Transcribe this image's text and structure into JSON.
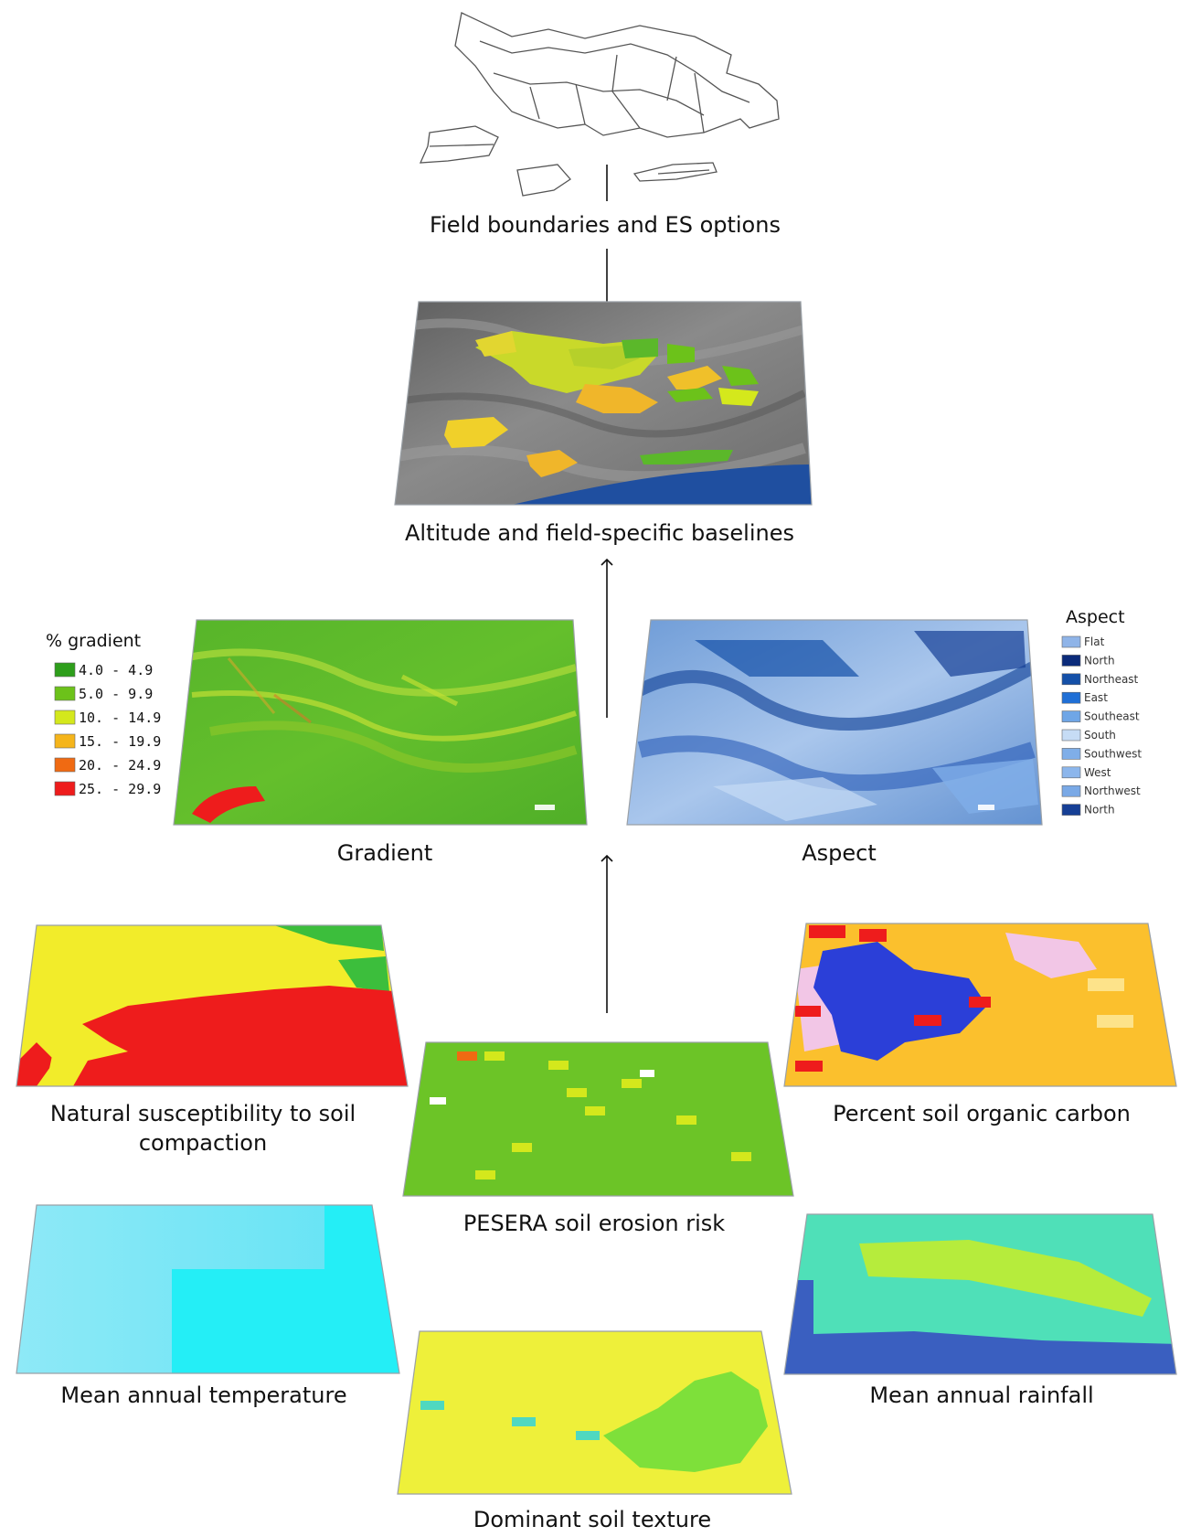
{
  "labels": {
    "field_boundaries": "Field boundaries and ES options",
    "altitude": "Altitude and field-specific baselines",
    "gradient": "Gradient",
    "aspect": "Aspect",
    "compaction_line1": "Natural susceptibility to soil",
    "compaction_line2": "compaction",
    "soil_carbon": "Percent soil organic carbon",
    "erosion": "PESERA soil erosion risk",
    "temperature": "Mean annual temperature",
    "rainfall": "Mean annual rainfall",
    "texture": "Dominant soil texture"
  },
  "gradient_legend": {
    "title": "% gradient",
    "items": [
      {
        "label": "4.0 - 4.9",
        "color": "#2e9e1b"
      },
      {
        "label": "5.0 - 9.9",
        "color": "#6cc21a"
      },
      {
        "label": "10. - 14.9",
        "color": "#d4e81c"
      },
      {
        "label": "15. - 19.9",
        "color": "#f5b51b"
      },
      {
        "label": "20. - 24.9",
        "color": "#f06a12"
      },
      {
        "label": "25. - 29.9",
        "color": "#ee1c1c"
      }
    ]
  },
  "aspect_legend": {
    "title": "Aspect",
    "items": [
      {
        "label": "Flat",
        "color": "#8fb4e8"
      },
      {
        "label": "North",
        "color": "#0b2b7a"
      },
      {
        "label": "Northeast",
        "color": "#1450a8"
      },
      {
        "label": "East",
        "color": "#1f6fd6"
      },
      {
        "label": "Southeast",
        "color": "#6fa6e6"
      },
      {
        "label": "South",
        "color": "#c6dcf5"
      },
      {
        "label": "Southwest",
        "color": "#7faee8"
      },
      {
        "label": "West",
        "color": "#8cb6ec"
      },
      {
        "label": "Northwest",
        "color": "#7aa9e6"
      },
      {
        "label": "North",
        "color": "#163f95"
      }
    ]
  },
  "colors": {
    "relief_gray": "#7a7a7a",
    "river_blue": "#1f4fa0",
    "gradient_green": "#5cb82a",
    "aspect_blue": "#7fa8dc",
    "compaction_yellow": "#f2ec2a",
    "compaction_red": "#ee1c1c",
    "compaction_green": "#3cbe3c",
    "carbon_orange": "#fbc02d",
    "carbon_blue": "#2b3fd8",
    "carbon_pink": "#f2c6e6",
    "erosion_green": "#6cc427",
    "temperature_cyan": "#24eef6",
    "temperature_light": "#7fe9f6",
    "rainfall_teal": "#4fe0b8",
    "rainfall_blue": "#3a5fc0",
    "rainfall_lime": "#b6ec3c",
    "texture_yellow": "#eef03a",
    "texture_green": "#7ee03a"
  }
}
